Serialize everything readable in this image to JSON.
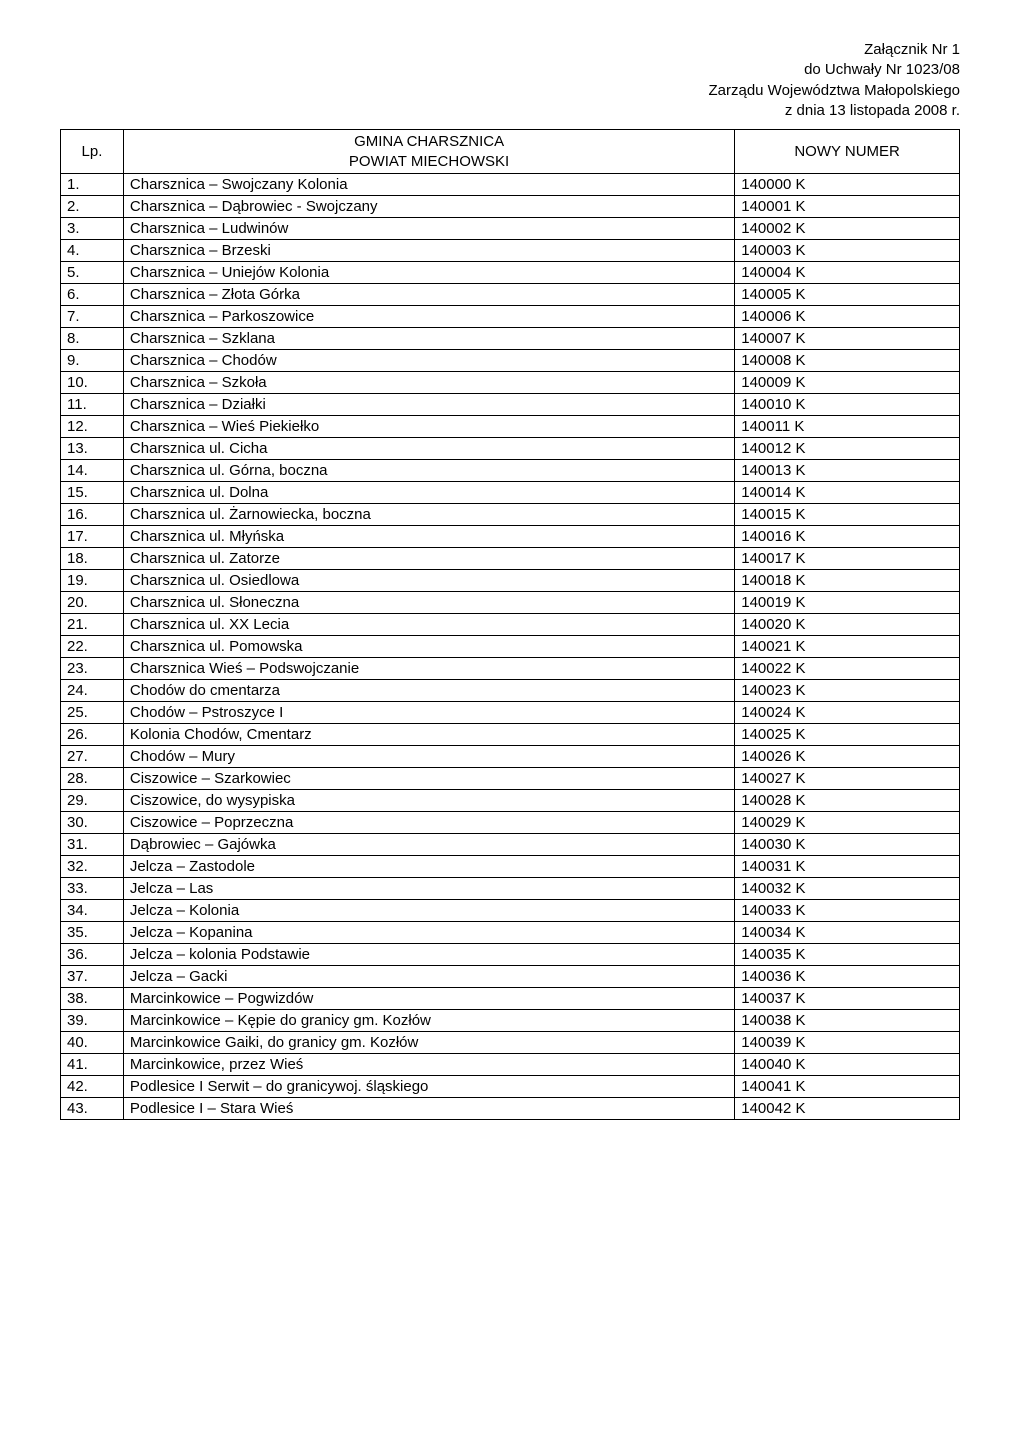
{
  "attachment_header": {
    "line1": "Załącznik Nr 1",
    "line2": "do Uchwały Nr 1023/08",
    "line3": "Zarządu Województwa Małopolskiego",
    "line4": "z dnia 13 listopada 2008 r."
  },
  "table_header": {
    "lp": "Lp.",
    "gmina_line1": "GMINA CHARSZNICA",
    "gmina_line2": "POWIAT MIECHOWSKI",
    "numer": "NOWY NUMER"
  },
  "rows": [
    {
      "lp": "1.",
      "name": "Charsznica – Swojczany Kolonia",
      "num": "140000 K"
    },
    {
      "lp": "2.",
      "name": "Charsznica – Dąbrowiec - Swojczany",
      "num": "140001 K"
    },
    {
      "lp": "3.",
      "name": "Charsznica – Ludwinów",
      "num": "140002 K"
    },
    {
      "lp": "4.",
      "name": "Charsznica – Brzeski",
      "num": "140003 K"
    },
    {
      "lp": "5.",
      "name": "Charsznica – Uniejów Kolonia",
      "num": "140004 K"
    },
    {
      "lp": "6.",
      "name": "Charsznica – Złota Górka",
      "num": "140005 K"
    },
    {
      "lp": "7.",
      "name": "Charsznica – Parkoszowice",
      "num": "140006 K"
    },
    {
      "lp": "8.",
      "name": "Charsznica – Szklana",
      "num": "140007 K"
    },
    {
      "lp": "9.",
      "name": "Charsznica – Chodów",
      "num": "140008 K"
    },
    {
      "lp": "10.",
      "name": "Charsznica – Szkoła",
      "num": "140009 K"
    },
    {
      "lp": "11.",
      "name": "Charsznica – Działki",
      "num": "140010 K"
    },
    {
      "lp": "12.",
      "name": "Charsznica – Wieś Piekiełko",
      "num": "140011 K"
    },
    {
      "lp": "13.",
      "name": "Charsznica ul. Cicha",
      "num": "140012 K"
    },
    {
      "lp": "14.",
      "name": "Charsznica ul. Górna, boczna",
      "num": "140013 K"
    },
    {
      "lp": "15.",
      "name": "Charsznica ul. Dolna",
      "num": "140014 K"
    },
    {
      "lp": "16.",
      "name": "Charsznica ul. Żarnowiecka, boczna",
      "num": "140015 K"
    },
    {
      "lp": "17.",
      "name": "Charsznica ul. Młyńska",
      "num": "140016 K"
    },
    {
      "lp": "18.",
      "name": "Charsznica ul. Zatorze",
      "num": "140017 K"
    },
    {
      "lp": "19.",
      "name": "Charsznica ul. Osiedlowa",
      "num": "140018 K"
    },
    {
      "lp": "20.",
      "name": "Charsznica ul. Słoneczna",
      "num": "140019 K"
    },
    {
      "lp": "21.",
      "name": "Charsznica ul. XX Lecia",
      "num": "140020 K"
    },
    {
      "lp": "22.",
      "name": "Charsznica ul. Pomowska",
      "num": "140021 K"
    },
    {
      "lp": "23.",
      "name": "Charsznica Wieś – Podswojczanie",
      "num": "140022 K"
    },
    {
      "lp": "24.",
      "name": "Chodów do cmentarza",
      "num": "140023 K"
    },
    {
      "lp": "25.",
      "name": "Chodów – Pstroszyce I",
      "num": "140024 K"
    },
    {
      "lp": "26.",
      "name": "Kolonia Chodów, Cmentarz",
      "num": "140025 K"
    },
    {
      "lp": "27.",
      "name": "Chodów – Mury",
      "num": "140026 K"
    },
    {
      "lp": "28.",
      "name": "Ciszowice – Szarkowiec",
      "num": "140027 K"
    },
    {
      "lp": "29.",
      "name": "Ciszowice, do wysypiska",
      "num": "140028 K"
    },
    {
      "lp": "30.",
      "name": "Ciszowice – Poprzeczna",
      "num": "140029 K"
    },
    {
      "lp": "31.",
      "name": "Dąbrowiec – Gajówka",
      "num": "140030 K"
    },
    {
      "lp": "32.",
      "name": "Jelcza – Zastodole",
      "num": "140031 K"
    },
    {
      "lp": "33.",
      "name": "Jelcza – Las",
      "num": "140032 K"
    },
    {
      "lp": "34.",
      "name": "Jelcza – Kolonia",
      "num": "140033 K"
    },
    {
      "lp": "35.",
      "name": "Jelcza – Kopanina",
      "num": "140034 K"
    },
    {
      "lp": "36.",
      "name": "Jelcza – kolonia Podstawie",
      "num": "140035 K"
    },
    {
      "lp": "37.",
      "name": "Jelcza – Gacki",
      "num": "140036 K"
    },
    {
      "lp": "38.",
      "name": "Marcinkowice – Pogwizdów",
      "num": "140037 K"
    },
    {
      "lp": "39.",
      "name": "Marcinkowice – Kępie do granicy gm. Kozłów",
      "num": "140038 K"
    },
    {
      "lp": "40.",
      "name": "Marcinkowice Gaiki, do granicy gm. Kozłów",
      "num": "140039 K"
    },
    {
      "lp": "41.",
      "name": "Marcinkowice, przez Wieś",
      "num": "140040 K"
    },
    {
      "lp": "42.",
      "name": "Podlesice I Serwit – do granicywoj. śląskiego",
      "num": "140041 K"
    },
    {
      "lp": "43.",
      "name": "Podlesice I – Stara Wieś",
      "num": "140042 K"
    }
  ]
}
